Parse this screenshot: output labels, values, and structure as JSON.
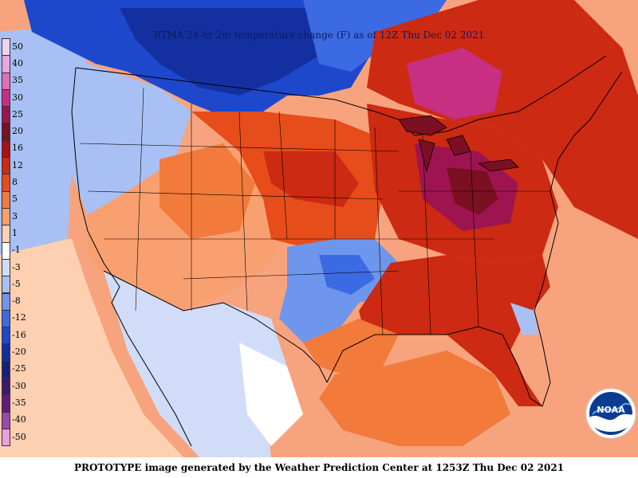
{
  "map": {
    "title": "RTMA 24-hr 2m temperature change (F) as of 12Z Thu Dec 02 2021",
    "footer": "PROTOTYPE image generated by the Weather Prediction Center at 1253Z Thu Dec 02 2021",
    "logo_text": "NOAA",
    "ocean_color": "#f7a47e",
    "border_color": "#000000"
  },
  "legend": {
    "entries": [
      {
        "label": "50",
        "color": "#f0d2ee"
      },
      {
        "label": "40",
        "color": "#e8a6dc"
      },
      {
        "label": "35",
        "color": "#de6fb8"
      },
      {
        "label": "30",
        "color": "#c82e82"
      },
      {
        "label": "25",
        "color": "#9e1450"
      },
      {
        "label": "20",
        "color": "#7a1022"
      },
      {
        "label": "16",
        "color": "#a81212"
      },
      {
        "label": "12",
        "color": "#cc2a12"
      },
      {
        "label": "8",
        "color": "#e64d1a"
      },
      {
        "label": "5",
        "color": "#f27a3a"
      },
      {
        "label": "3",
        "color": "#f8a070"
      },
      {
        "label": "1",
        "color": "#fcd0b0"
      },
      {
        "label": "-1",
        "color": "#ffffff"
      },
      {
        "label": "-3",
        "color": "#d0dcf8"
      },
      {
        "label": "-5",
        "color": "#a8c0f4"
      },
      {
        "label": "-8",
        "color": "#6e96ec"
      },
      {
        "label": "-12",
        "color": "#3c6ae2"
      },
      {
        "label": "-16",
        "color": "#1e48cc"
      },
      {
        "label": "-20",
        "color": "#1430a0"
      },
      {
        "label": "-25",
        "color": "#16207a"
      },
      {
        "label": "-30",
        "color": "#3a1a6c"
      },
      {
        "label": "-35",
        "color": "#621c80"
      },
      {
        "label": "-40",
        "color": "#9a4aa8"
      },
      {
        "label": "-50",
        "color": "#e8a0dc"
      }
    ]
  },
  "regions": [
    {
      "name": "canada-west",
      "color": "#3a6ee0"
    },
    {
      "name": "canada-central",
      "color": "#1e48cc"
    },
    {
      "name": "hudson-bay-area",
      "color": "#3c6ae2"
    },
    {
      "name": "ontario-quebec-warm",
      "color": "#c82e82"
    },
    {
      "name": "great-lakes-warm",
      "color": "#9e1450"
    },
    {
      "name": "ohio-valley-warm",
      "color": "#7a1022"
    },
    {
      "name": "pacific-northwest",
      "color": "#a8c0f4"
    },
    {
      "name": "west-mixed",
      "color": "#f8a070"
    },
    {
      "name": "plains-warm",
      "color": "#e64d1a"
    },
    {
      "name": "southern-plains-cold",
      "color": "#3c6ae2"
    },
    {
      "name": "southeast-warm",
      "color": "#cc2a12"
    },
    {
      "name": "mexico-mixed",
      "color": "#d0dcf8"
    },
    {
      "name": "gulf-of-mexico",
      "color": "#f27a3a"
    },
    {
      "name": "atlantic",
      "color": "#f27a3a"
    },
    {
      "name": "pacific",
      "color": "#f8a070"
    }
  ]
}
